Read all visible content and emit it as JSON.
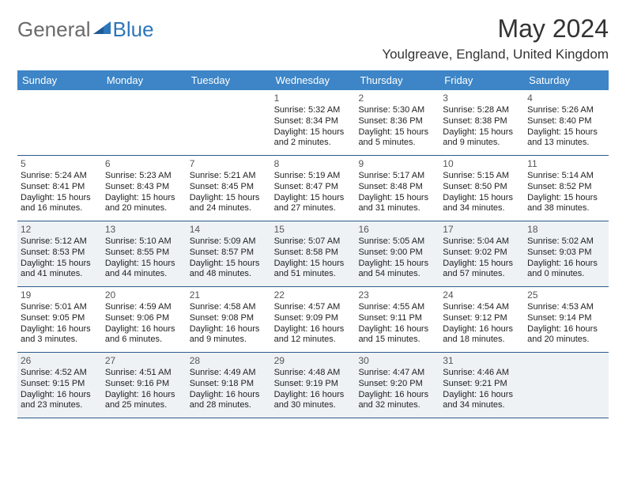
{
  "brand": {
    "part1": "General",
    "part2": "Blue"
  },
  "title": "May 2024",
  "location": "Youlgreave, England, United Kingdom",
  "colors": {
    "header_bar": "#3d85c6",
    "header_text": "#ffffff",
    "rule": "#2d5a8a",
    "shade_bg": "#eef2f5",
    "logo_gray": "#6a6a6a",
    "logo_blue": "#2d76ba",
    "page_bg": "#ffffff",
    "body_text": "#222222"
  },
  "typography": {
    "title_fontsize": 32,
    "location_fontsize": 17,
    "dayhead_fontsize": 13,
    "daynum_fontsize": 12,
    "cell_fontsize": 11
  },
  "day_headers": [
    "Sunday",
    "Monday",
    "Tuesday",
    "Wednesday",
    "Thursday",
    "Friday",
    "Saturday"
  ],
  "weeks": [
    {
      "shaded": false,
      "cells": [
        null,
        null,
        null,
        {
          "n": "1",
          "sunrise": "Sunrise: 5:32 AM",
          "sunset": "Sunset: 8:34 PM",
          "daylight": "Daylight: 15 hours and 2 minutes."
        },
        {
          "n": "2",
          "sunrise": "Sunrise: 5:30 AM",
          "sunset": "Sunset: 8:36 PM",
          "daylight": "Daylight: 15 hours and 5 minutes."
        },
        {
          "n": "3",
          "sunrise": "Sunrise: 5:28 AM",
          "sunset": "Sunset: 8:38 PM",
          "daylight": "Daylight: 15 hours and 9 minutes."
        },
        {
          "n": "4",
          "sunrise": "Sunrise: 5:26 AM",
          "sunset": "Sunset: 8:40 PM",
          "daylight": "Daylight: 15 hours and 13 minutes."
        }
      ]
    },
    {
      "shaded": false,
      "cells": [
        {
          "n": "5",
          "sunrise": "Sunrise: 5:24 AM",
          "sunset": "Sunset: 8:41 PM",
          "daylight": "Daylight: 15 hours and 16 minutes."
        },
        {
          "n": "6",
          "sunrise": "Sunrise: 5:23 AM",
          "sunset": "Sunset: 8:43 PM",
          "daylight": "Daylight: 15 hours and 20 minutes."
        },
        {
          "n": "7",
          "sunrise": "Sunrise: 5:21 AM",
          "sunset": "Sunset: 8:45 PM",
          "daylight": "Daylight: 15 hours and 24 minutes."
        },
        {
          "n": "8",
          "sunrise": "Sunrise: 5:19 AM",
          "sunset": "Sunset: 8:47 PM",
          "daylight": "Daylight: 15 hours and 27 minutes."
        },
        {
          "n": "9",
          "sunrise": "Sunrise: 5:17 AM",
          "sunset": "Sunset: 8:48 PM",
          "daylight": "Daylight: 15 hours and 31 minutes."
        },
        {
          "n": "10",
          "sunrise": "Sunrise: 5:15 AM",
          "sunset": "Sunset: 8:50 PM",
          "daylight": "Daylight: 15 hours and 34 minutes."
        },
        {
          "n": "11",
          "sunrise": "Sunrise: 5:14 AM",
          "sunset": "Sunset: 8:52 PM",
          "daylight": "Daylight: 15 hours and 38 minutes."
        }
      ]
    },
    {
      "shaded": true,
      "cells": [
        {
          "n": "12",
          "sunrise": "Sunrise: 5:12 AM",
          "sunset": "Sunset: 8:53 PM",
          "daylight": "Daylight: 15 hours and 41 minutes."
        },
        {
          "n": "13",
          "sunrise": "Sunrise: 5:10 AM",
          "sunset": "Sunset: 8:55 PM",
          "daylight": "Daylight: 15 hours and 44 minutes."
        },
        {
          "n": "14",
          "sunrise": "Sunrise: 5:09 AM",
          "sunset": "Sunset: 8:57 PM",
          "daylight": "Daylight: 15 hours and 48 minutes."
        },
        {
          "n": "15",
          "sunrise": "Sunrise: 5:07 AM",
          "sunset": "Sunset: 8:58 PM",
          "daylight": "Daylight: 15 hours and 51 minutes."
        },
        {
          "n": "16",
          "sunrise": "Sunrise: 5:05 AM",
          "sunset": "Sunset: 9:00 PM",
          "daylight": "Daylight: 15 hours and 54 minutes."
        },
        {
          "n": "17",
          "sunrise": "Sunrise: 5:04 AM",
          "sunset": "Sunset: 9:02 PM",
          "daylight": "Daylight: 15 hours and 57 minutes."
        },
        {
          "n": "18",
          "sunrise": "Sunrise: 5:02 AM",
          "sunset": "Sunset: 9:03 PM",
          "daylight": "Daylight: 16 hours and 0 minutes."
        }
      ]
    },
    {
      "shaded": false,
      "cells": [
        {
          "n": "19",
          "sunrise": "Sunrise: 5:01 AM",
          "sunset": "Sunset: 9:05 PM",
          "daylight": "Daylight: 16 hours and 3 minutes."
        },
        {
          "n": "20",
          "sunrise": "Sunrise: 4:59 AM",
          "sunset": "Sunset: 9:06 PM",
          "daylight": "Daylight: 16 hours and 6 minutes."
        },
        {
          "n": "21",
          "sunrise": "Sunrise: 4:58 AM",
          "sunset": "Sunset: 9:08 PM",
          "daylight": "Daylight: 16 hours and 9 minutes."
        },
        {
          "n": "22",
          "sunrise": "Sunrise: 4:57 AM",
          "sunset": "Sunset: 9:09 PM",
          "daylight": "Daylight: 16 hours and 12 minutes."
        },
        {
          "n": "23",
          "sunrise": "Sunrise: 4:55 AM",
          "sunset": "Sunset: 9:11 PM",
          "daylight": "Daylight: 16 hours and 15 minutes."
        },
        {
          "n": "24",
          "sunrise": "Sunrise: 4:54 AM",
          "sunset": "Sunset: 9:12 PM",
          "daylight": "Daylight: 16 hours and 18 minutes."
        },
        {
          "n": "25",
          "sunrise": "Sunrise: 4:53 AM",
          "sunset": "Sunset: 9:14 PM",
          "daylight": "Daylight: 16 hours and 20 minutes."
        }
      ]
    },
    {
      "shaded": true,
      "cells": [
        {
          "n": "26",
          "sunrise": "Sunrise: 4:52 AM",
          "sunset": "Sunset: 9:15 PM",
          "daylight": "Daylight: 16 hours and 23 minutes."
        },
        {
          "n": "27",
          "sunrise": "Sunrise: 4:51 AM",
          "sunset": "Sunset: 9:16 PM",
          "daylight": "Daylight: 16 hours and 25 minutes."
        },
        {
          "n": "28",
          "sunrise": "Sunrise: 4:49 AM",
          "sunset": "Sunset: 9:18 PM",
          "daylight": "Daylight: 16 hours and 28 minutes."
        },
        {
          "n": "29",
          "sunrise": "Sunrise: 4:48 AM",
          "sunset": "Sunset: 9:19 PM",
          "daylight": "Daylight: 16 hours and 30 minutes."
        },
        {
          "n": "30",
          "sunrise": "Sunrise: 4:47 AM",
          "sunset": "Sunset: 9:20 PM",
          "daylight": "Daylight: 16 hours and 32 minutes."
        },
        {
          "n": "31",
          "sunrise": "Sunrise: 4:46 AM",
          "sunset": "Sunset: 9:21 PM",
          "daylight": "Daylight: 16 hours and 34 minutes."
        },
        null
      ]
    }
  ]
}
